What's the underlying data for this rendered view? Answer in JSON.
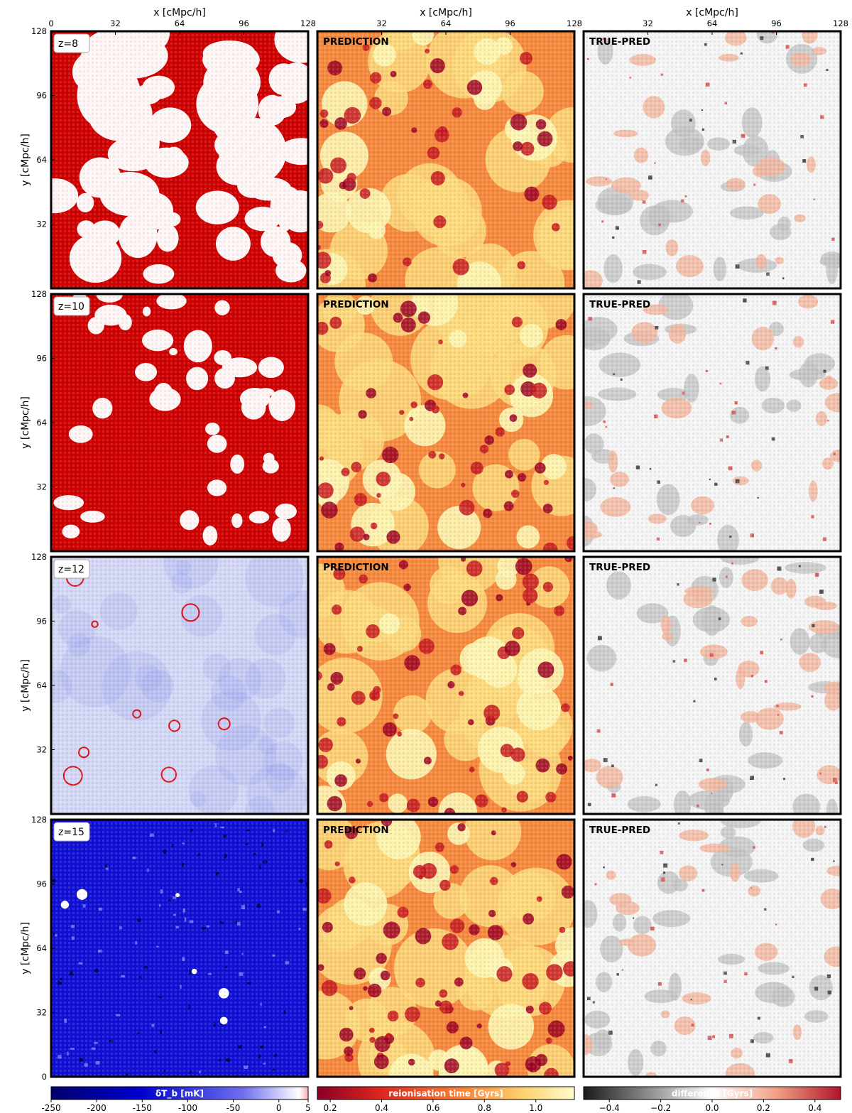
{
  "chart_data": {
    "type": "heatmap",
    "layout": "4 rows x 3 columns of 2D slice maps",
    "x_axis": {
      "label": "x [cMpc/h]",
      "ticks": [
        0,
        32,
        64,
        96,
        128
      ],
      "range": [
        0,
        128
      ]
    },
    "y_axis": {
      "label": "y [cMpc/h]",
      "ticks": [
        0,
        32,
        64,
        96,
        128
      ],
      "range": [
        0,
        128
      ]
    },
    "rows": [
      {
        "redshift_label": "z=8"
      },
      {
        "redshift_label": "z=10"
      },
      {
        "redshift_label": "z=12"
      },
      {
        "redshift_label": "z=15"
      }
    ],
    "columns": [
      {
        "panel_label": "",
        "colormap": "seismic",
        "colorbar_label": "δT_b [mK]",
        "colorbar_range": [
          -250,
          5
        ],
        "colorbar_ticks": [
          "-250",
          "-200",
          "-150",
          "-100",
          "-50",
          "0",
          "5"
        ]
      },
      {
        "panel_label": "PREDICTION",
        "colormap": "YlOrRd_r",
        "colorbar_label": "reionisation time [Gyrs]",
        "colorbar_range": [
          0.15,
          1.15
        ],
        "colorbar_ticks": [
          "0.2",
          "0.4",
          "0.6",
          "0.8",
          "1.0"
        ]
      },
      {
        "panel_label": "TRUE-PRED",
        "colormap": "RdGy_r",
        "colorbar_label": "difference [Gyrs]",
        "colorbar_range": [
          -0.5,
          0.5
        ],
        "colorbar_ticks": [
          "−0.4",
          "−0.2",
          "0.0",
          "0.2",
          "0.4"
        ]
      }
    ],
    "colors": {
      "col1_ionized": "#fff6f6",
      "col1_emission": "#d10000",
      "col1_absorption": "#1010d8",
      "col2_late": "#fdf6b2",
      "col2_early": "#9e0022",
      "col3_zero": "#f5f5f5",
      "col3_positive": "#c0392b",
      "col3_negative": "#2a2a2a"
    }
  }
}
